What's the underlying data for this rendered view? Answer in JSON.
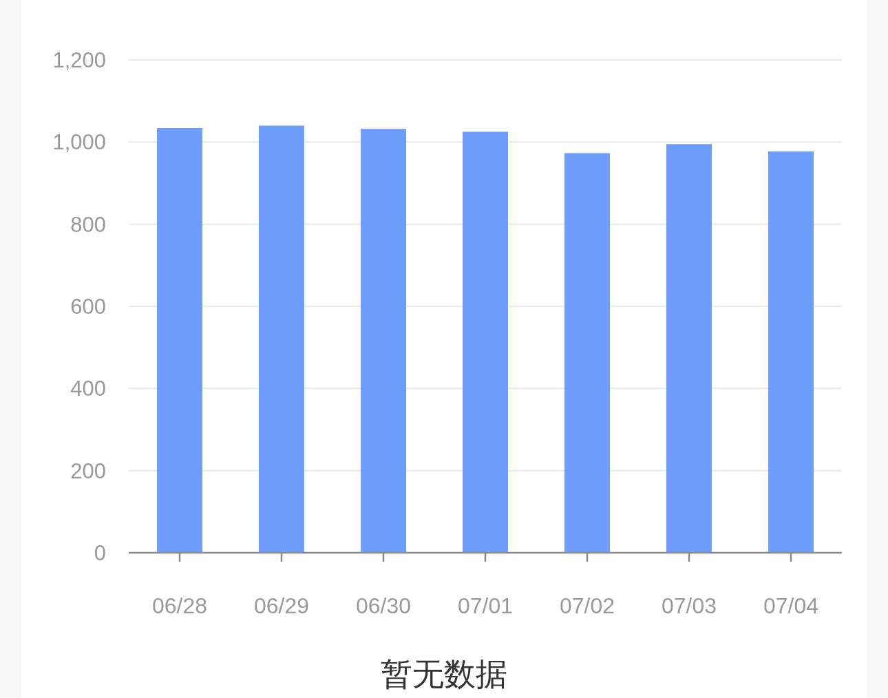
{
  "chart_data": {
    "type": "bar",
    "categories": [
      "06/28",
      "06/29",
      "06/30",
      "07/01",
      "07/02",
      "07/03",
      "07/04"
    ],
    "values": [
      1034,
      1040,
      1032,
      1025,
      973,
      995,
      977
    ],
    "color": "#6f9dfd",
    "ylim": [
      0,
      1200
    ],
    "yticks": [
      0,
      200,
      400,
      600,
      800,
      {
        "value": 1000,
        "label": "1,000"
      },
      {
        "value": 1200,
        "label": "1,200"
      }
    ],
    "grid": "y",
    "annotations": [
      "暂无数据"
    ]
  }
}
